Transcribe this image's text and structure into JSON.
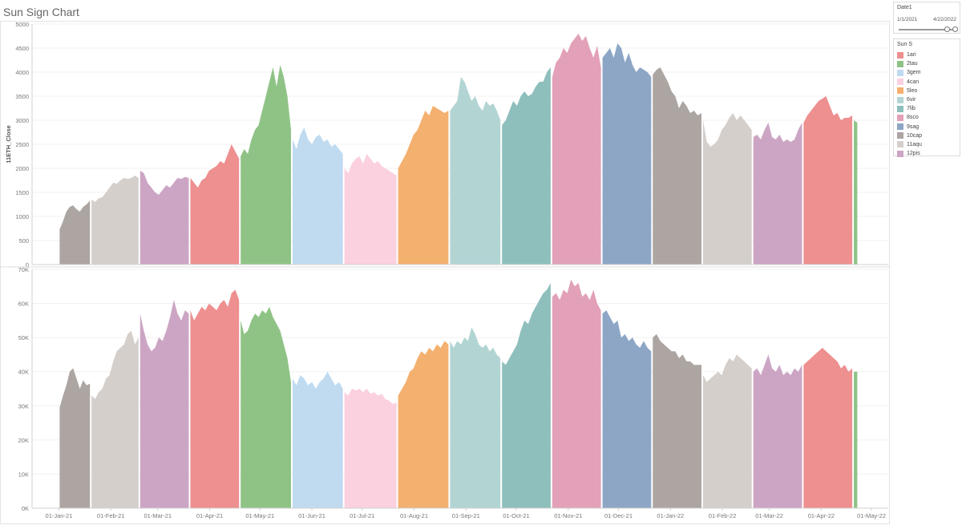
{
  "title": "Sun Sign Chart",
  "date_filter": {
    "title": "Date1",
    "start": "1/1/2021",
    "end": "4/22/2022",
    "start_fraction": 0.85,
    "end_fraction": 1.0
  },
  "legend": {
    "title": "Sun S",
    "items": [
      {
        "label": "1ari",
        "color": "#ee8f90"
      },
      {
        "label": "2tau",
        "color": "#8fc386"
      },
      {
        "label": "3gem",
        "color": "#c0dbf0"
      },
      {
        "label": "4can",
        "color": "#fbd0df"
      },
      {
        "label": "5leo",
        "color": "#f4b06f"
      },
      {
        "label": "6vir",
        "color": "#b2d5d4"
      },
      {
        "label": "7lib",
        "color": "#8ebfbc"
      },
      {
        "label": "8sco",
        "color": "#e2a1b8"
      },
      {
        "label": "9sag",
        "color": "#8da6c6"
      },
      {
        "label": "10cap",
        "color": "#aca5a2"
      },
      {
        "label": "11aqu",
        "color": "#d4cfcb"
      },
      {
        "label": "12pis",
        "color": "#cca5c4"
      }
    ]
  },
  "chart_data": [
    {
      "type": "area",
      "ylabel": "11ETH_Close",
      "ylim": [
        0,
        5000
      ],
      "yticks": [
        "0",
        "500",
        "1000",
        "1500",
        "2000",
        "2500",
        "3000",
        "3500",
        "4000",
        "4500",
        "5000"
      ],
      "grid": true,
      "series": [
        {
          "sign": "10cap",
          "start": "2021-01-01",
          "end": "2021-01-19",
          "values": [
            730,
            900,
            1100,
            1200,
            1230,
            1150,
            1100,
            1200,
            1250,
            1330
          ]
        },
        {
          "sign": "11aqu",
          "start": "2021-01-20",
          "end": "2021-02-17",
          "values": [
            1350,
            1300,
            1380,
            1400,
            1500,
            1600,
            1700,
            1680,
            1750,
            1800,
            1780,
            1800,
            1850,
            1800
          ]
        },
        {
          "sign": "12pis",
          "start": "2021-02-18",
          "end": "2021-03-19",
          "values": [
            1950,
            1900,
            1700,
            1600,
            1500,
            1450,
            1550,
            1650,
            1600,
            1700,
            1800,
            1780,
            1820,
            1800
          ]
        },
        {
          "sign": "1ari",
          "start": "2021-03-20",
          "end": "2021-04-18",
          "values": [
            1800,
            1700,
            1600,
            1750,
            1800,
            1950,
            2000,
            2050,
            2150,
            2100,
            2300,
            2500,
            2350,
            2200
          ]
        },
        {
          "sign": "2tau",
          "start": "2021-04-19",
          "end": "2021-05-19",
          "values": [
            2250,
            2400,
            2300,
            2600,
            2800,
            2900,
            3200,
            3500,
            3800,
            4100,
            3700,
            4150,
            3900,
            3500,
            2800
          ]
        },
        {
          "sign": "3gem",
          "start": "2021-05-20",
          "end": "2021-06-19",
          "values": [
            2600,
            2400,
            2700,
            2850,
            2600,
            2500,
            2650,
            2700,
            2550,
            2600,
            2450,
            2500,
            2400,
            2300
          ]
        },
        {
          "sign": "4can",
          "start": "2021-06-20",
          "end": "2021-07-21",
          "values": [
            2000,
            1900,
            2100,
            2200,
            2250,
            2100,
            2300,
            2200,
            2100,
            2150,
            2050,
            2000,
            1950,
            1900,
            1850
          ]
        },
        {
          "sign": "5leo",
          "start": "2021-07-22",
          "end": "2021-08-21",
          "values": [
            2000,
            2150,
            2300,
            2500,
            2700,
            2800,
            3000,
            3200,
            3100,
            3300,
            3250,
            3200,
            3150,
            3200
          ]
        },
        {
          "sign": "6vir",
          "start": "2021-08-22",
          "end": "2021-09-21",
          "values": [
            3200,
            3300,
            3400,
            3900,
            3800,
            3600,
            3400,
            3500,
            3300,
            3200,
            3400,
            3300,
            3350,
            3200,
            3000
          ]
        },
        {
          "sign": "7lib",
          "start": "2021-09-22",
          "end": "2021-10-21",
          "values": [
            2900,
            3000,
            3200,
            3400,
            3300,
            3500,
            3600,
            3500,
            3550,
            3700,
            3800,
            3800,
            4000,
            4100
          ]
        },
        {
          "sign": "8sco",
          "start": "2021-10-22",
          "end": "2021-11-20",
          "values": [
            3900,
            4200,
            4300,
            4500,
            4400,
            4600,
            4700,
            4800,
            4650,
            4750,
            4500,
            4300,
            4550,
            4100
          ]
        },
        {
          "sign": "9sag",
          "start": "2021-11-21",
          "end": "2021-12-20",
          "values": [
            4300,
            4400,
            4500,
            4300,
            4600,
            4500,
            4200,
            4400,
            4150,
            4000,
            4100,
            4050,
            4000,
            3900
          ]
        },
        {
          "sign": "10cap",
          "start": "2021-12-21",
          "end": "2022-01-19",
          "values": [
            3950,
            4050,
            4100,
            3950,
            3800,
            3600,
            3500,
            3250,
            3400,
            3300,
            3150,
            3200,
            3100,
            3150
          ]
        },
        {
          "sign": "11aqu",
          "start": "2022-01-20",
          "end": "2022-02-18",
          "values": [
            3000,
            2550,
            2450,
            2500,
            2600,
            2800,
            2900,
            3050,
            3150,
            3000,
            3100,
            3000,
            2900,
            2800
          ]
        },
        {
          "sign": "12pis",
          "start": "2022-02-19",
          "end": "2022-03-20",
          "values": [
            2650,
            2700,
            2600,
            2800,
            2950,
            2650,
            2600,
            2700,
            2550,
            2600,
            2550,
            2600,
            2800,
            2950
          ]
        },
        {
          "sign": "1ari",
          "start": "2022-03-21",
          "end": "2022-04-19",
          "values": [
            2950,
            3100,
            3200,
            3300,
            3400,
            3450,
            3500,
            3300,
            3100,
            3150,
            3000,
            3050,
            3050,
            3100
          ]
        },
        {
          "sign": "2tau",
          "start": "2022-04-20",
          "end": "2022-04-22",
          "values": [
            3000,
            2950
          ]
        }
      ]
    },
    {
      "type": "area",
      "ylabel": "",
      "ylim": [
        0,
        70000
      ],
      "yticks": [
        "0K",
        "10K",
        "20K",
        "30K",
        "40K",
        "50K",
        "60K",
        "70K"
      ],
      "grid": true,
      "xlabels": [
        "01-Jan-21",
        "01-Feb-21",
        "01-Mar-21",
        "01-Apr-21",
        "01-May-21",
        "01-Jun-21",
        "01-Jul-21",
        "01-Aug-21",
        "01-Sep-21",
        "01-Oct-21",
        "01-Nov-21",
        "01-Dec-21",
        "01-Jan-22",
        "01-Feb-22",
        "01-Mar-22",
        "01-Apr-22",
        "01-May-22"
      ],
      "xticks": [
        "2021-01-01",
        "2021-02-01",
        "2021-03-01",
        "2021-04-01",
        "2021-05-01",
        "2021-06-01",
        "2021-07-01",
        "2021-08-01",
        "2021-09-01",
        "2021-10-01",
        "2021-11-01",
        "2021-12-01",
        "2022-01-01",
        "2022-02-01",
        "2022-03-01",
        "2022-04-01",
        "2022-05-01"
      ],
      "series": [
        {
          "sign": "10cap",
          "start": "2021-01-01",
          "end": "2021-01-19",
          "values": [
            29500,
            33000,
            36000,
            40000,
            41000,
            38000,
            35000,
            37500,
            36000,
            36500
          ]
        },
        {
          "sign": "11aqu",
          "start": "2021-01-20",
          "end": "2021-02-17",
          "values": [
            33000,
            32000,
            34000,
            35000,
            38000,
            39000,
            43000,
            46000,
            47000,
            48000,
            51000,
            52000,
            48000,
            50000
          ]
        },
        {
          "sign": "12pis",
          "start": "2021-02-18",
          "end": "2021-03-19",
          "values": [
            57000,
            52000,
            48000,
            46000,
            47000,
            50000,
            49000,
            52000,
            56000,
            61000,
            57000,
            55000,
            58000,
            57000
          ]
        },
        {
          "sign": "1ari",
          "start": "2021-03-20",
          "end": "2021-04-18",
          "values": [
            58000,
            55000,
            57000,
            59000,
            58000,
            60000,
            59000,
            58000,
            60000,
            61000,
            59000,
            63000,
            64000,
            61000
          ]
        },
        {
          "sign": "2tau",
          "start": "2021-04-19",
          "end": "2021-05-19",
          "values": [
            55000,
            51000,
            52000,
            55000,
            57000,
            56000,
            58000,
            57000,
            59000,
            56000,
            54000,
            52000,
            48000,
            44000,
            37000
          ]
        },
        {
          "sign": "3gem",
          "start": "2021-05-20",
          "end": "2021-06-19",
          "values": [
            38000,
            36000,
            39000,
            38000,
            36000,
            37000,
            35000,
            37000,
            38000,
            40000,
            38000,
            36000,
            37000,
            35000
          ]
        },
        {
          "sign": "4can",
          "start": "2021-06-20",
          "end": "2021-07-21",
          "values": [
            34000,
            33000,
            35000,
            34500,
            35000,
            34000,
            35000,
            33500,
            34000,
            33000,
            33500,
            32000,
            31500,
            30500,
            31000
          ]
        },
        {
          "sign": "5leo",
          "start": "2021-07-22",
          "end": "2021-08-21",
          "values": [
            33000,
            35000,
            37000,
            40000,
            41000,
            44000,
            46000,
            45000,
            47000,
            46000,
            48000,
            47000,
            49000,
            48000
          ]
        },
        {
          "sign": "6vir",
          "start": "2021-08-22",
          "end": "2021-09-21",
          "values": [
            49000,
            47000,
            49000,
            48000,
            50000,
            49000,
            53000,
            51000,
            48000,
            47000,
            48000,
            46000,
            47000,
            45000,
            44000
          ]
        },
        {
          "sign": "7lib",
          "start": "2021-09-22",
          "end": "2021-10-21",
          "values": [
            43000,
            42000,
            44000,
            46000,
            48000,
            52000,
            55000,
            54000,
            57000,
            59000,
            61000,
            63000,
            64000,
            66000
          ]
        },
        {
          "sign": "8sco",
          "start": "2021-10-22",
          "end": "2021-11-20",
          "values": [
            62000,
            63000,
            61000,
            64000,
            63000,
            67000,
            65000,
            66000,
            62000,
            63000,
            61000,
            64000,
            60000,
            58000
          ]
        },
        {
          "sign": "9sag",
          "start": "2021-11-21",
          "end": "2021-12-20",
          "values": [
            57000,
            58000,
            56000,
            54000,
            55000,
            50000,
            51000,
            49000,
            50000,
            48000,
            47000,
            49000,
            47000,
            46000
          ]
        },
        {
          "sign": "10cap",
          "start": "2021-12-21",
          "end": "2022-01-19",
          "values": [
            50000,
            51000,
            49000,
            48000,
            47000,
            46000,
            46000,
            44000,
            45000,
            43000,
            43000,
            42000,
            42000,
            42000
          ]
        },
        {
          "sign": "11aqu",
          "start": "2022-01-20",
          "end": "2022-02-18",
          "values": [
            39000,
            37000,
            38000,
            39000,
            40000,
            39000,
            42000,
            44000,
            43000,
            45000,
            44000,
            43000,
            42000,
            41000
          ]
        },
        {
          "sign": "12pis",
          "start": "2022-02-19",
          "end": "2022-03-20",
          "values": [
            40000,
            41000,
            39000,
            42000,
            45000,
            41000,
            40000,
            42000,
            39000,
            40000,
            39000,
            41000,
            40000,
            42000
          ]
        },
        {
          "sign": "1ari",
          "start": "2022-03-21",
          "end": "2022-04-19",
          "values": [
            42000,
            43000,
            44000,
            45000,
            46000,
            47000,
            46000,
            45000,
            44000,
            43000,
            41000,
            42000,
            40000,
            41000
          ]
        },
        {
          "sign": "2tau",
          "start": "2022-04-20",
          "end": "2022-04-22",
          "values": [
            40000,
            40000
          ]
        }
      ]
    }
  ]
}
